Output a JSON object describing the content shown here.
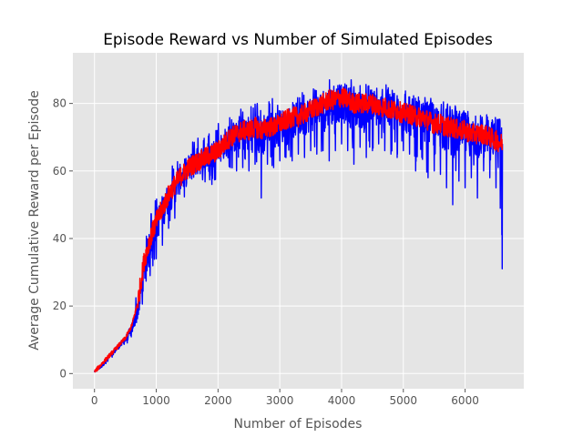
{
  "chart_data": {
    "type": "line",
    "title": "Episode Reward vs Number of Simulated Episodes",
    "xlabel": "Number of Episodes",
    "ylabel": "Average Cumulative Reward per Episode",
    "xlim": [
      -350,
      6950
    ],
    "ylim": [
      -4.5,
      95
    ],
    "xticks": [
      0,
      1000,
      2000,
      3000,
      4000,
      5000,
      6000
    ],
    "yticks": [
      0,
      20,
      40,
      60,
      80
    ],
    "grid": true,
    "legend": "none",
    "colors": {
      "plot_bg": "#e5e5e5",
      "grid": "#ffffff",
      "series_raw": "#0000ff",
      "series_smooth": "#ff0000"
    },
    "series": [
      {
        "key": "raw",
        "x": [
          0,
          100,
          200,
          300,
          400,
          500,
          600,
          700,
          800,
          900,
          1000,
          1100,
          1200,
          1300,
          1400,
          1500,
          1600,
          1700,
          1800,
          1900,
          2000,
          2100,
          2200,
          2300,
          2400,
          2500,
          2600,
          2700,
          2800,
          2900,
          3000,
          3100,
          3200,
          3300,
          3400,
          3500,
          3600,
          3700,
          3800,
          3900,
          4000,
          4100,
          4200,
          4300,
          4400,
          4500,
          4600,
          4700,
          4800,
          4900,
          5000,
          5100,
          5200,
          5300,
          5400,
          5500,
          5600,
          5700,
          5800,
          5900,
          6000,
          6100,
          6200,
          6300,
          6400,
          6500,
          6600
        ],
        "y": [
          0.5,
          2,
          4,
          6,
          8,
          10,
          13,
          19,
          30,
          39,
          44,
          48,
          52,
          55,
          58,
          60,
          62,
          63,
          64,
          65,
          66,
          68,
          70,
          70,
          71,
          71,
          72,
          71,
          72,
          72,
          73,
          74,
          75,
          75,
          76,
          77,
          77,
          78,
          79,
          80,
          80,
          79,
          79,
          78,
          78,
          79,
          78,
          78,
          77,
          77,
          76,
          76,
          75,
          75,
          74,
          73,
          73,
          72,
          72,
          71,
          71,
          70,
          70,
          70,
          70,
          69,
          68
        ],
        "y_upper": [
          1,
          3,
          5,
          7,
          9,
          12,
          16,
          26,
          37,
          47,
          52,
          56,
          60,
          63,
          66,
          68,
          70,
          70,
          71,
          72,
          74,
          76,
          77,
          77,
          79,
          80,
          80,
          81,
          81,
          82,
          82,
          82,
          83,
          83,
          84,
          85,
          85,
          90,
          87,
          87,
          88,
          87,
          87,
          86,
          86,
          87,
          86,
          86,
          85,
          85,
          84,
          84,
          84,
          83,
          82,
          82,
          81,
          80,
          80,
          79,
          79,
          78,
          78,
          78,
          77,
          76,
          74
        ],
        "y_lower": [
          0,
          1,
          3,
          5,
          7,
          8,
          10,
          14,
          22,
          29,
          34,
          38,
          43,
          46,
          50,
          52,
          54,
          55,
          56,
          56,
          58,
          60,
          61,
          60,
          61,
          60,
          62,
          52,
          62,
          61,
          63,
          64,
          63,
          65,
          64,
          66,
          65,
          66,
          63,
          66,
          68,
          66,
          62,
          67,
          64,
          66,
          68,
          66,
          65,
          64,
          66,
          65,
          60,
          64,
          58,
          60,
          59,
          55,
          50,
          57,
          55,
          58,
          52,
          60,
          58,
          55,
          31
        ]
      },
      {
        "key": "smooth",
        "x": [
          0,
          100,
          200,
          300,
          400,
          500,
          600,
          700,
          800,
          900,
          1000,
          1100,
          1200,
          1300,
          1400,
          1500,
          1600,
          1700,
          1800,
          1900,
          2000,
          2100,
          2200,
          2300,
          2400,
          2500,
          2600,
          2700,
          2800,
          2900,
          3000,
          3100,
          3200,
          3300,
          3400,
          3500,
          3600,
          3700,
          3800,
          3900,
          4000,
          4100,
          4200,
          4300,
          4400,
          4500,
          4600,
          4700,
          4800,
          4900,
          5000,
          5100,
          5200,
          5300,
          5400,
          5500,
          5600,
          5700,
          5800,
          5900,
          6000,
          6100,
          6200,
          6300,
          6400,
          6500,
          6600
        ],
        "y": [
          0.5,
          2.5,
          4.5,
          6.5,
          8.5,
          10.5,
          14,
          21,
          33,
          40,
          45,
          49,
          53,
          56,
          58.5,
          60.5,
          62,
          63,
          64,
          65,
          66,
          68,
          70,
          71,
          72,
          72,
          73,
          72,
          73,
          73,
          74,
          75,
          76,
          76,
          77,
          78,
          79,
          80,
          81,
          81,
          82,
          81,
          80,
          80,
          80,
          80,
          79,
          79,
          78,
          78,
          77,
          77,
          76,
          76,
          75,
          74,
          74,
          73,
          73,
          72,
          72,
          71,
          71,
          71,
          70,
          69,
          68
        ],
        "band": 3
      }
    ]
  }
}
